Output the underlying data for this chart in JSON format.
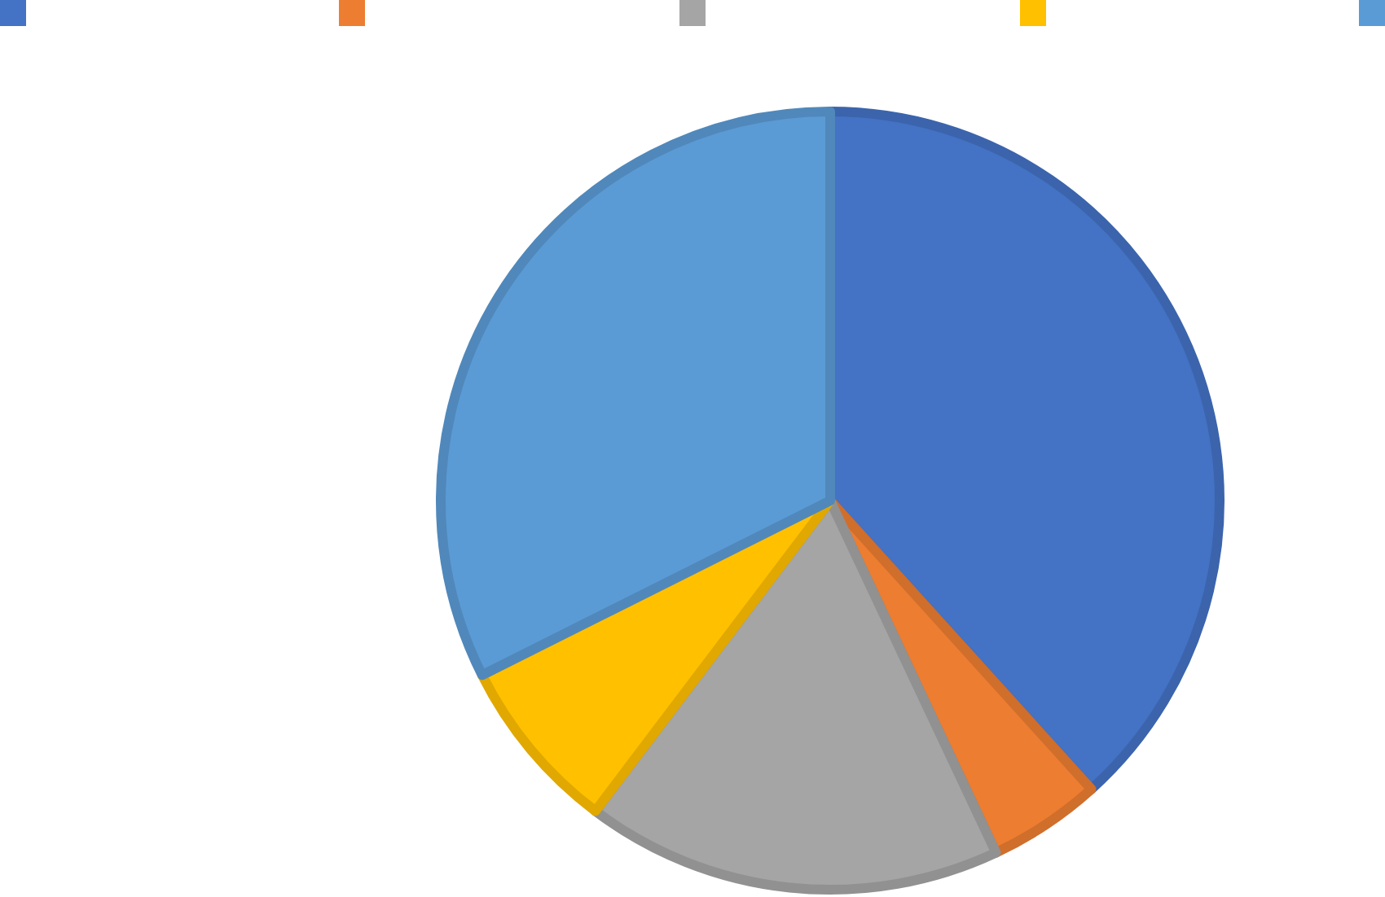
{
  "chart_data": {
    "type": "pie",
    "categories": [
      null,
      null,
      null,
      null,
      null
    ],
    "values": [
      38.3,
      4.7,
      17.3,
      7.3,
      32.4
    ],
    "colors": [
      "#4472c4",
      "#ed7d31",
      "#a5a5a5",
      "#ffc000",
      "#5b9bd5"
    ]
  }
}
